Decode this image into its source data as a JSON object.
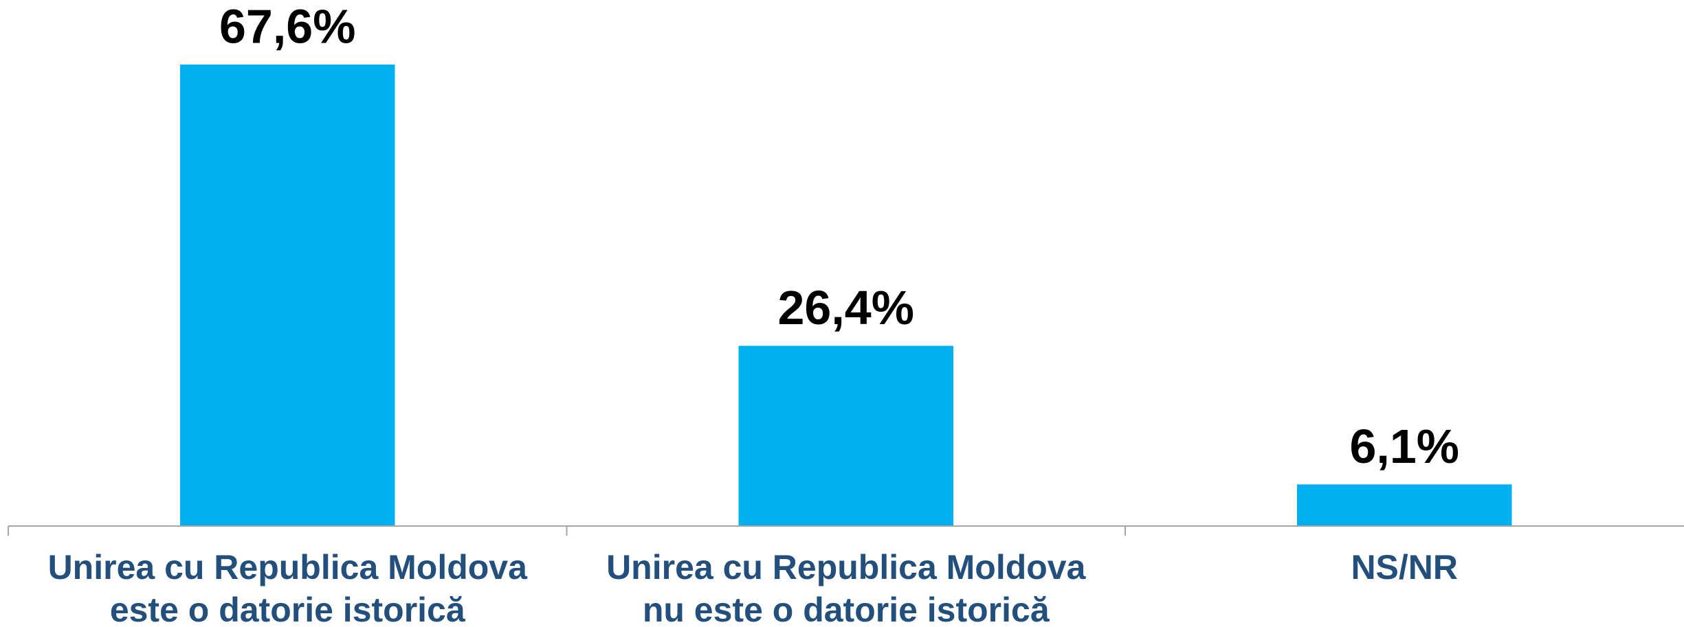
{
  "chart_data": {
    "type": "bar",
    "categories": [
      [
        "Unirea cu Republica Moldova",
        "este o datorie istorică"
      ],
      [
        "Unirea cu Republica Moldova",
        "nu este o datorie istorică"
      ],
      [
        "NS/NR"
      ]
    ],
    "values": [
      67.6,
      26.4,
      6.1
    ],
    "value_labels": [
      "67,6%",
      "26,4%",
      "6,1%"
    ],
    "color": "#00b0f0",
    "axis_color": "#a6a6a6"
  }
}
